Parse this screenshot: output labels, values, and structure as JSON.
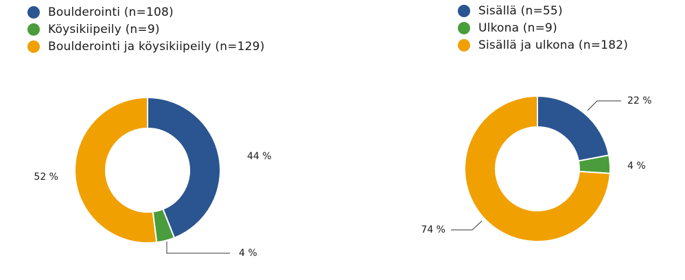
{
  "colors": {
    "blue": "#2a5591",
    "green": "#4a9c3c",
    "orange": "#f0a000"
  },
  "chart_data": [
    {
      "type": "pie",
      "legend_position": "top-left",
      "labels": [
        "Boulderointi (n=108)",
        "Köysikiipeily (n=9)",
        "Boulderointi ja köysikiipeily (n=129)"
      ],
      "values": [
        44,
        4,
        52
      ],
      "value_labels": [
        "44 %",
        "4 %",
        "52 %"
      ],
      "colors": [
        "#2a5591",
        "#4a9c3c",
        "#f0a000"
      ]
    },
    {
      "type": "pie",
      "legend_position": "top-left",
      "labels": [
        "Sisällä (n=55)",
        "Ulkona (n=9)",
        "Sisällä ja ulkona (n=182)"
      ],
      "values": [
        22,
        4,
        74
      ],
      "value_labels": [
        "22 %",
        "4 %",
        "74 %"
      ],
      "colors": [
        "#2a5591",
        "#4a9c3c",
        "#f0a000"
      ]
    }
  ]
}
